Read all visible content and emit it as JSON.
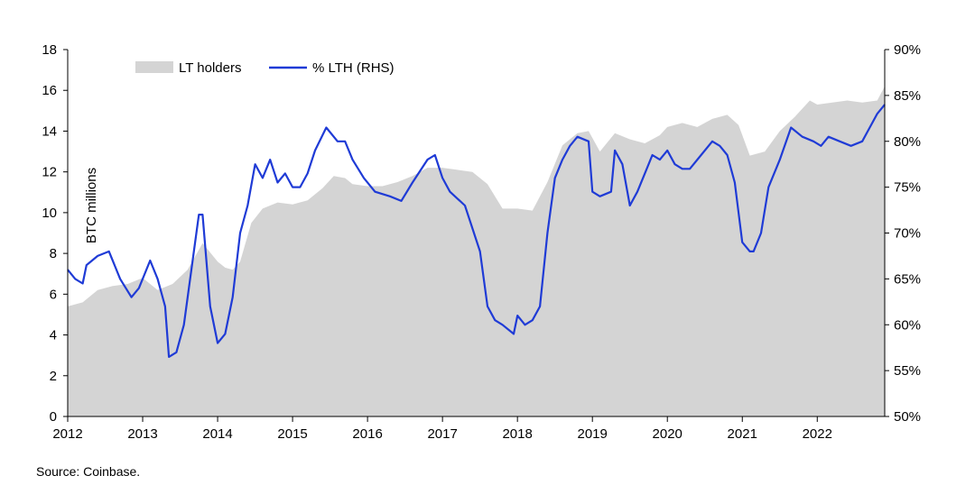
{
  "chart_data": {
    "type": "area",
    "x_axis": {
      "min": 2012,
      "max": 2022.9,
      "ticks": [
        "2012",
        "2013",
        "2014",
        "2015",
        "2016",
        "2017",
        "2018",
        "2019",
        "2020",
        "2021",
        "2022"
      ]
    },
    "y_left": {
      "label": "BTC millions",
      "min": 0,
      "max": 18,
      "ticks": [
        "0",
        "2",
        "4",
        "6",
        "8",
        "10",
        "12",
        "14",
        "16",
        "18"
      ]
    },
    "y_right": {
      "min": 50,
      "max": 90,
      "ticks": [
        "50%",
        "55%",
        "60%",
        "65%",
        "70%",
        "75%",
        "80%",
        "85%",
        "90%"
      ]
    },
    "legend": [
      "LT holders",
      "% LTH (RHS)"
    ],
    "grid": false,
    "series": [
      {
        "name": "LT holders",
        "type": "area",
        "axis": "left",
        "color": "#d4d4d4",
        "x": [
          2012.0,
          2012.2,
          2012.4,
          2012.6,
          2012.8,
          2013.0,
          2013.2,
          2013.4,
          2013.6,
          2013.8,
          2014.0,
          2014.1,
          2014.2,
          2014.3,
          2014.45,
          2014.6,
          2014.8,
          2015.0,
          2015.2,
          2015.4,
          2015.55,
          2015.7,
          2015.8,
          2016.0,
          2016.2,
          2016.4,
          2016.6,
          2016.8,
          2017.0,
          2017.2,
          2017.4,
          2017.6,
          2017.8,
          2018.0,
          2018.2,
          2018.4,
          2018.6,
          2018.8,
          2018.95,
          2019.1,
          2019.3,
          2019.5,
          2019.7,
          2019.9,
          2020.0,
          2020.2,
          2020.4,
          2020.6,
          2020.8,
          2020.95,
          2021.1,
          2021.3,
          2021.5,
          2021.7,
          2021.9,
          2022.0,
          2022.2,
          2022.4,
          2022.6,
          2022.8,
          2022.9
        ],
        "values": [
          5.4,
          5.6,
          6.2,
          6.4,
          6.5,
          6.8,
          6.2,
          6.5,
          7.2,
          8.5,
          7.6,
          7.3,
          7.2,
          7.6,
          9.5,
          10.2,
          10.5,
          10.4,
          10.6,
          11.2,
          11.8,
          11.7,
          11.4,
          11.3,
          11.3,
          11.5,
          11.8,
          12.2,
          12.2,
          12.1,
          12.0,
          11.4,
          10.2,
          10.2,
          10.1,
          11.5,
          13.3,
          13.9,
          14.0,
          13.0,
          13.9,
          13.6,
          13.4,
          13.8,
          14.2,
          14.4,
          14.2,
          14.6,
          14.8,
          14.3,
          12.8,
          13.0,
          14.0,
          14.7,
          15.5,
          15.3,
          15.4,
          15.5,
          15.4,
          15.5,
          16.2
        ]
      },
      {
        "name": "% LTH (RHS)",
        "type": "line",
        "axis": "right",
        "color": "#1f3bd6",
        "x": [
          2012.0,
          2012.1,
          2012.2,
          2012.25,
          2012.4,
          2012.55,
          2012.7,
          2012.85,
          2012.95,
          2013.1,
          2013.2,
          2013.3,
          2013.35,
          2013.45,
          2013.55,
          2013.65,
          2013.75,
          2013.8,
          2013.9,
          2014.0,
          2014.1,
          2014.2,
          2014.3,
          2014.4,
          2014.5,
          2014.6,
          2014.7,
          2014.8,
          2014.9,
          2015.0,
          2015.1,
          2015.2,
          2015.3,
          2015.45,
          2015.6,
          2015.7,
          2015.8,
          2015.95,
          2016.1,
          2016.3,
          2016.45,
          2016.6,
          2016.8,
          2016.9,
          2017.0,
          2017.1,
          2017.3,
          2017.5,
          2017.6,
          2017.7,
          2017.8,
          2017.95,
          2018.0,
          2018.1,
          2018.2,
          2018.3,
          2018.4,
          2018.5,
          2018.6,
          2018.7,
          2018.8,
          2018.95,
          2019.0,
          2019.1,
          2019.25,
          2019.3,
          2019.4,
          2019.5,
          2019.6,
          2019.7,
          2019.8,
          2019.9,
          2020.0,
          2020.1,
          2020.2,
          2020.3,
          2020.45,
          2020.6,
          2020.7,
          2020.8,
          2020.9,
          2021.0,
          2021.1,
          2021.15,
          2021.25,
          2021.35,
          2021.5,
          2021.65,
          2021.8,
          2021.95,
          2022.05,
          2022.15,
          2022.3,
          2022.45,
          2022.6,
          2022.7,
          2022.8,
          2022.9
        ],
        "values": [
          66.0,
          65.0,
          64.5,
          66.5,
          67.5,
          68.0,
          65.0,
          63.0,
          64.0,
          67.0,
          65.0,
          62.0,
          56.5,
          57.0,
          60.0,
          66.0,
          72.0,
          72.0,
          62.0,
          58.0,
          59.0,
          63.0,
          70.0,
          73.0,
          77.5,
          76.0,
          78.0,
          75.5,
          76.5,
          75.0,
          75.0,
          76.5,
          79.0,
          81.5,
          80.0,
          80.0,
          78.0,
          76.0,
          74.5,
          74.0,
          73.5,
          75.5,
          78.0,
          78.5,
          76.0,
          74.5,
          73.0,
          68.0,
          62.0,
          60.5,
          60.0,
          59.0,
          61.0,
          60.0,
          60.5,
          62.0,
          70.0,
          76.0,
          78.0,
          79.5,
          80.5,
          80.0,
          74.5,
          74.0,
          74.5,
          79.0,
          77.5,
          73.0,
          74.5,
          76.5,
          78.5,
          78.0,
          79.0,
          77.5,
          77.0,
          77.0,
          78.5,
          80.0,
          79.5,
          78.5,
          75.5,
          69.0,
          68.0,
          68.0,
          70.0,
          75.0,
          78.0,
          81.5,
          80.5,
          80.0,
          79.5,
          80.5,
          80.0,
          79.5,
          80.0,
          81.5,
          83.0,
          84.0
        ]
      }
    ]
  },
  "source": "Source: Coinbase."
}
